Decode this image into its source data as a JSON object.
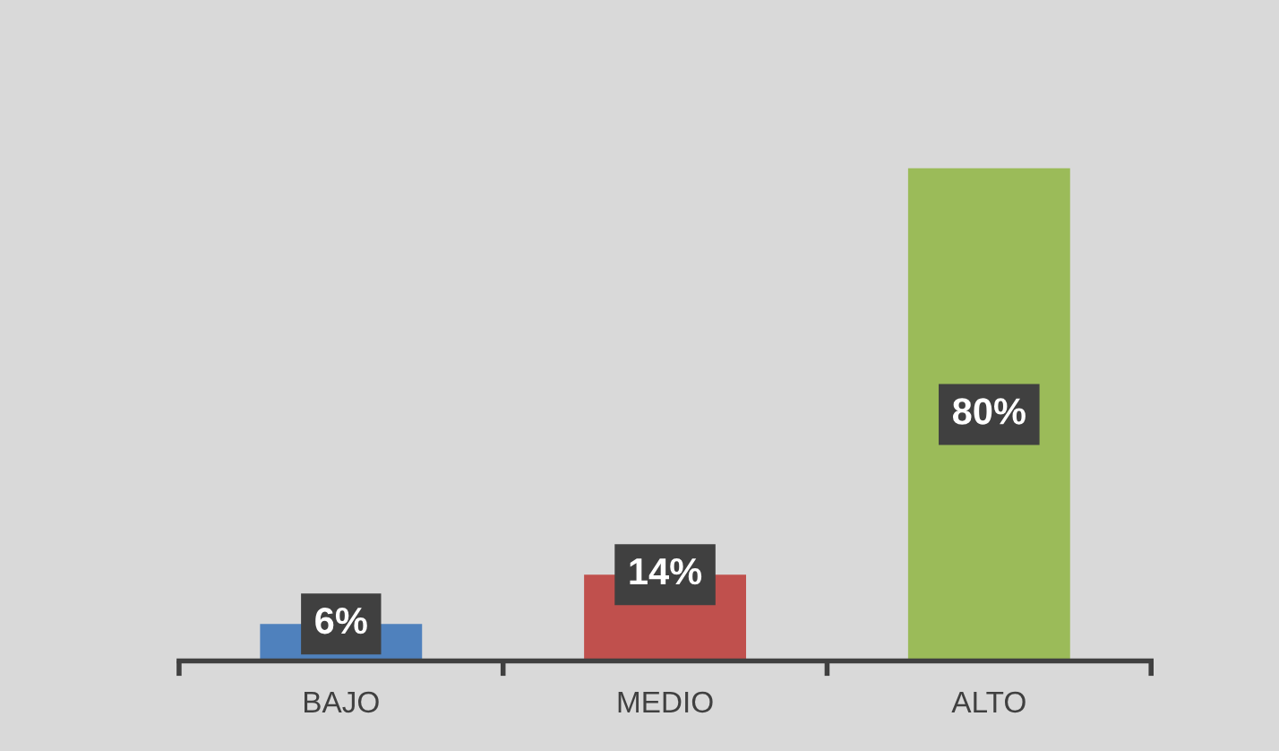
{
  "chart_data": {
    "type": "bar",
    "categories": [
      "BAJO",
      "MEDIO",
      "ALTO"
    ],
    "values": [
      6,
      14,
      80
    ],
    "colors": [
      "#4f81bd",
      "#c0504d",
      "#9bbb59"
    ],
    "value_labels": [
      "6%",
      "14%",
      "80%"
    ],
    "grid": false,
    "legend": false
  }
}
